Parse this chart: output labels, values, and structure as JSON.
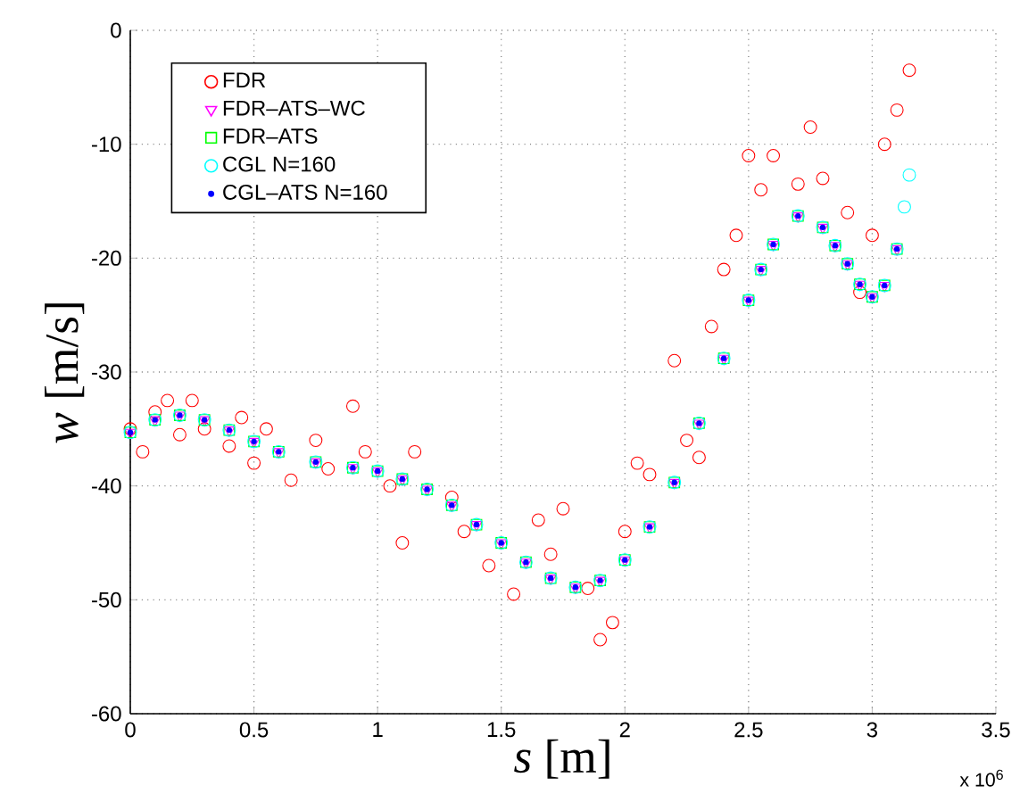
{
  "chart_data": {
    "type": "scatter",
    "xlabel": "*s* [m]",
    "ylabel": "*w* [m/s]",
    "xlim": [
      0,
      3.5
    ],
    "ylim": [
      -60,
      0
    ],
    "xticks": [
      0,
      0.5,
      1,
      1.5,
      2,
      2.5,
      3,
      3.5
    ],
    "yticks": [
      -60,
      -50,
      -40,
      -30,
      -20,
      -10,
      0
    ],
    "grid": true,
    "legend": "top left",
    "annotations": [
      "x 10$^{6}$"
    ],
    "series": [
      {
        "name": "FDR",
        "color": "#ff0000",
        "marker": "circle",
        "x": [
          0,
          0.05,
          0.1,
          0.15,
          0.2,
          0.25,
          0.3,
          0.4,
          0.45,
          0.5,
          0.55,
          0.65,
          0.75,
          0.8,
          0.9,
          0.95,
          1.05,
          1.1,
          1.15,
          1.3,
          1.35,
          1.45,
          1.55,
          1.65,
          1.7,
          1.75,
          1.85,
          1.9,
          1.95,
          2.0,
          2.05,
          2.1,
          2.2,
          2.25,
          2.3,
          2.35,
          2.4,
          2.45,
          2.5,
          2.55,
          2.6,
          2.7,
          2.75,
          2.8,
          2.9,
          2.95,
          3.0,
          3.05,
          3.1,
          3.15
        ],
        "values": [
          -35,
          -37,
          -33.5,
          -32.5,
          -35.5,
          -32.5,
          -35,
          -36.5,
          -34,
          -38,
          -35,
          -39.5,
          -36,
          -38.5,
          -33,
          -37,
          -40,
          -45,
          -37,
          -41,
          -44,
          -47,
          -49.5,
          -43,
          -46,
          -42,
          -49,
          -53.5,
          -52,
          -44,
          -38,
          -39,
          -29,
          -36,
          -37.5,
          -26,
          -21,
          -18,
          -11,
          -14,
          -11,
          -13.5,
          -8.5,
          -13,
          -16,
          -23,
          -18,
          -10,
          -7,
          -3.5
        ]
      },
      {
        "name": "FDR–ATS–WC",
        "color": "#ff00ff",
        "marker": "triangle",
        "x": [
          0,
          0.1,
          0.2,
          0.3,
          0.4,
          0.5,
          0.6,
          0.75,
          0.9,
          1.0,
          1.1,
          1.2,
          1.3,
          1.4,
          1.5,
          1.6,
          1.7,
          1.8,
          1.9,
          2.0,
          2.1,
          2.2,
          2.3,
          2.4,
          2.5,
          2.55,
          2.6,
          2.7,
          2.8,
          2.85,
          2.9,
          2.95,
          3.0,
          3.05,
          3.1
        ],
        "values": [
          -35.3,
          -34.2,
          -33.8,
          -34.2,
          -35.1,
          -36.1,
          -37,
          -37.9,
          -38.4,
          -38.7,
          -39.4,
          -40.3,
          -41.7,
          -43.4,
          -45,
          -46.7,
          -48.1,
          -48.9,
          -48.3,
          -46.5,
          -43.6,
          -39.7,
          -34.5,
          -28.8,
          -23.7,
          -21,
          -18.8,
          -16.3,
          -17.3,
          -18.9,
          -20.5,
          -22.3,
          -23.4,
          -22.4,
          -19.2
        ]
      },
      {
        "name": "FDR–ATS",
        "color": "#00ff00",
        "marker": "square",
        "x": [
          0,
          0.1,
          0.2,
          0.3,
          0.4,
          0.5,
          0.6,
          0.75,
          0.9,
          1.0,
          1.1,
          1.2,
          1.3,
          1.4,
          1.5,
          1.6,
          1.7,
          1.8,
          1.9,
          2.0,
          2.1,
          2.2,
          2.3,
          2.4,
          2.5,
          2.55,
          2.6,
          2.7,
          2.8,
          2.85,
          2.9,
          2.95,
          3.0,
          3.05,
          3.1
        ],
        "values": [
          -35.3,
          -34.2,
          -33.8,
          -34.2,
          -35.1,
          -36.1,
          -37,
          -37.9,
          -38.4,
          -38.7,
          -39.4,
          -40.3,
          -41.7,
          -43.4,
          -45,
          -46.7,
          -48.1,
          -48.9,
          -48.3,
          -46.5,
          -43.6,
          -39.7,
          -34.5,
          -28.8,
          -23.7,
          -21,
          -18.8,
          -16.3,
          -17.3,
          -18.9,
          -20.5,
          -22.3,
          -23.4,
          -22.4,
          -19.2
        ]
      },
      {
        "name": "CGL N=160",
        "color": "#00ffff",
        "marker": "circle",
        "x": [
          0,
          0.1,
          0.2,
          0.3,
          0.4,
          0.5,
          0.6,
          0.75,
          0.9,
          1.0,
          1.1,
          1.2,
          1.3,
          1.4,
          1.5,
          1.6,
          1.7,
          1.8,
          1.9,
          2.0,
          2.1,
          2.2,
          2.3,
          2.4,
          2.5,
          2.55,
          2.6,
          2.7,
          2.8,
          2.85,
          2.9,
          2.95,
          3.0,
          3.05,
          3.1,
          3.13,
          3.15
        ],
        "values": [
          -35.3,
          -34.2,
          -33.8,
          -34.2,
          -35.1,
          -36.1,
          -37,
          -37.9,
          -38.4,
          -38.7,
          -39.4,
          -40.3,
          -41.7,
          -43.4,
          -45,
          -46.7,
          -48.1,
          -48.9,
          -48.3,
          -46.5,
          -43.6,
          -39.7,
          -34.5,
          -28.8,
          -23.7,
          -21,
          -18.8,
          -16.3,
          -17.3,
          -18.9,
          -20.5,
          -22.3,
          -23.4,
          -22.4,
          -19.2,
          -15.5,
          -12.7
        ]
      },
      {
        "name": "CGL–ATS N=160",
        "color": "#0000ff",
        "marker": "dot",
        "x": [
          0,
          0.1,
          0.2,
          0.3,
          0.4,
          0.5,
          0.6,
          0.75,
          0.9,
          1.0,
          1.1,
          1.2,
          1.3,
          1.4,
          1.5,
          1.6,
          1.7,
          1.8,
          1.9,
          2.0,
          2.1,
          2.2,
          2.3,
          2.4,
          2.5,
          2.55,
          2.6,
          2.7,
          2.8,
          2.85,
          2.9,
          2.95,
          3.0,
          3.05,
          3.1
        ],
        "values": [
          -35.3,
          -34.2,
          -33.8,
          -34.2,
          -35.1,
          -36.1,
          -37,
          -37.9,
          -38.4,
          -38.7,
          -39.4,
          -40.3,
          -41.7,
          -43.4,
          -45,
          -46.7,
          -48.1,
          -48.9,
          -48.3,
          -46.5,
          -43.6,
          -39.7,
          -34.5,
          -28.8,
          -23.7,
          -21,
          -18.8,
          -16.3,
          -17.3,
          -18.9,
          -20.5,
          -22.3,
          -23.4,
          -22.4,
          -19.2
        ]
      }
    ]
  }
}
